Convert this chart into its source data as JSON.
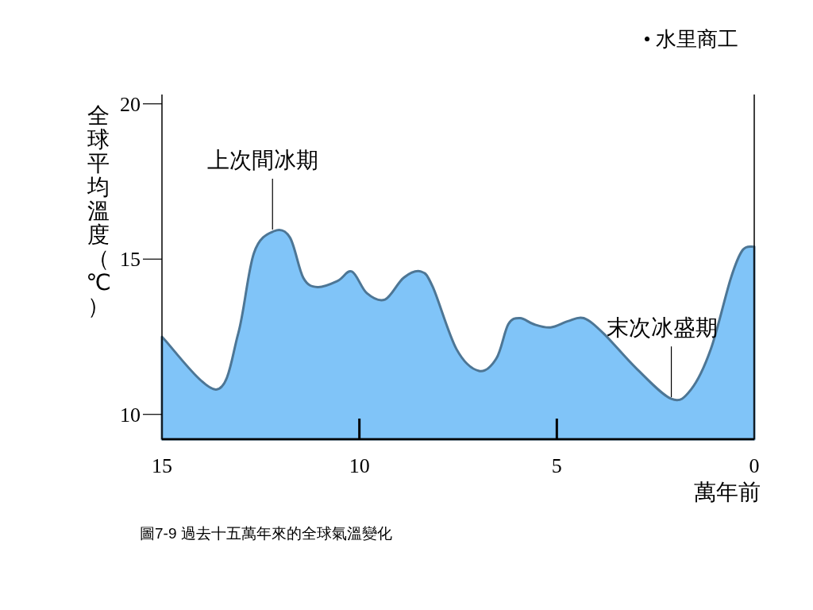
{
  "chart_data": {
    "type": "area",
    "xlabel": "萬年前",
    "ylabel": "全球平均溫度（℃）",
    "x": [
      15,
      13.63,
      13.07,
      12.67,
      12.16,
      11.76,
      11.42,
      11.06,
      10.55,
      10.19,
      9.81,
      9.35,
      8.88,
      8.44,
      8.14,
      7.54,
      6.97,
      6.53,
      6.23,
      5.93,
      5.58,
      5.16,
      4.72,
      4.32,
      3.81,
      3.0,
      2.1,
      1.6,
      1.1,
      0.59,
      0.29,
      0
    ],
    "series": [
      {
        "color": "#80c4f8",
        "values": [
          12.5,
          10.8,
          12.6,
          15.2,
          15.9,
          15.7,
          14.4,
          14.1,
          14.3,
          14.6,
          13.9,
          13.7,
          14.4,
          14.6,
          14.1,
          12.1,
          11.4,
          11.8,
          12.9,
          13.1,
          12.9,
          12.8,
          13.0,
          13.1,
          12.6,
          11.5,
          10.5,
          10.8,
          12.1,
          14.4,
          15.3,
          15.4
        ]
      }
    ],
    "xlim": [
      15,
      0
    ],
    "xticks": [
      15,
      10,
      5,
      0
    ],
    "ylim": [
      9.2,
      20.3
    ],
    "yticks": [
      10,
      15,
      20
    ],
    "annotations": [
      {
        "text": "上次間冰期",
        "x": 12.2,
        "y": 15.9
      },
      {
        "text": "末次冰盛期",
        "x": 2.1,
        "y": 10.5
      },
      "• 水里商工",
      "圖7-9 過去十五萬年來的全球氣溫變化"
    ]
  }
}
